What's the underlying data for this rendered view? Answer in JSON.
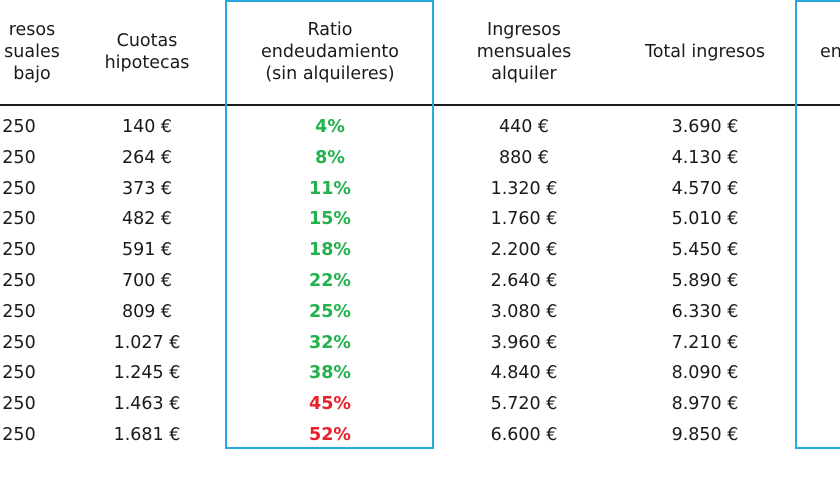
{
  "table": {
    "headers": {
      "ingresos_trabajo": [
        "resos",
        "suales",
        "bajo"
      ],
      "cuotas": [
        "Cuotas",
        "hipotecas"
      ],
      "ratio": [
        "Ratio",
        "endeudamiento",
        "(sin alquileres)"
      ],
      "ingresos_alquiler": [
        "Ingresos",
        "mensuales",
        "alquiler"
      ],
      "total": [
        "Total ingresos"
      ],
      "cut": [
        "en"
      ]
    },
    "colors": {
      "accent_border": "#29a8e0",
      "ratio_ok": "#22b14c",
      "ratio_high": "#e8202a"
    },
    "rows": [
      {
        "ingresos_trabajo": "250",
        "cuotas": "140 €",
        "ratio": "4%",
        "ratio_status": "ok",
        "alquiler": "440 €",
        "total": "3.690 €"
      },
      {
        "ingresos_trabajo": "250",
        "cuotas": "264 €",
        "ratio": "8%",
        "ratio_status": "ok",
        "alquiler": "880 €",
        "total": "4.130 €"
      },
      {
        "ingresos_trabajo": "250",
        "cuotas": "373 €",
        "ratio": "11%",
        "ratio_status": "ok",
        "alquiler": "1.320 €",
        "total": "4.570 €"
      },
      {
        "ingresos_trabajo": "250",
        "cuotas": "482 €",
        "ratio": "15%",
        "ratio_status": "ok",
        "alquiler": "1.760 €",
        "total": "5.010 €"
      },
      {
        "ingresos_trabajo": "250",
        "cuotas": "591 €",
        "ratio": "18%",
        "ratio_status": "ok",
        "alquiler": "2.200 €",
        "total": "5.450 €"
      },
      {
        "ingresos_trabajo": "250",
        "cuotas": "700 €",
        "ratio": "22%",
        "ratio_status": "ok",
        "alquiler": "2.640 €",
        "total": "5.890 €"
      },
      {
        "ingresos_trabajo": "250",
        "cuotas": "809 €",
        "ratio": "25%",
        "ratio_status": "ok",
        "alquiler": "3.080 €",
        "total": "6.330 €"
      },
      {
        "ingresos_trabajo": "250",
        "cuotas": "1.027 €",
        "ratio": "32%",
        "ratio_status": "ok",
        "alquiler": "3.960 €",
        "total": "7.210 €"
      },
      {
        "ingresos_trabajo": "250",
        "cuotas": "1.245 €",
        "ratio": "38%",
        "ratio_status": "ok",
        "alquiler": "4.840 €",
        "total": "8.090 €"
      },
      {
        "ingresos_trabajo": "250",
        "cuotas": "1.463 €",
        "ratio": "45%",
        "ratio_status": "high",
        "alquiler": "5.720 €",
        "total": "8.970 €"
      },
      {
        "ingresos_trabajo": "250",
        "cuotas": "1.681 €",
        "ratio": "52%",
        "ratio_status": "high",
        "alquiler": "6.600 €",
        "total": "9.850 €"
      }
    ]
  }
}
